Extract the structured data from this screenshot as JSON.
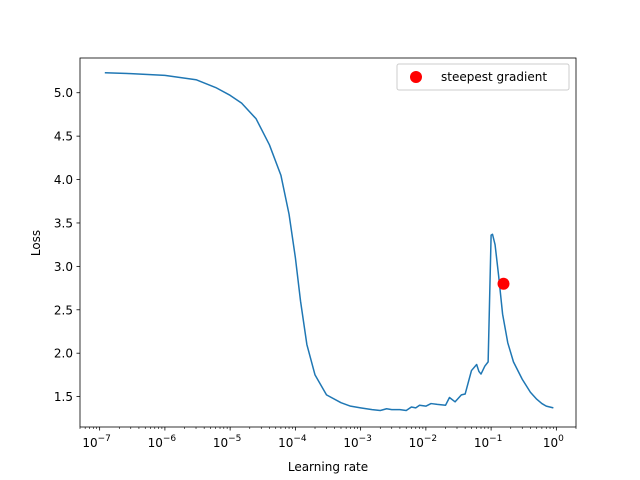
{
  "chart_data": {
    "type": "line",
    "xlabel": "Learning rate",
    "ylabel": "Loss",
    "xscale": "log",
    "xlim": [
      5e-08,
      2
    ],
    "ylim": [
      1.15,
      5.4
    ],
    "grid": false,
    "legend_placement": "top-right",
    "colors": {
      "line": "#1f77b4",
      "marker": "#ff0000"
    },
    "x_ticks": [
      {
        "value": 1e-07,
        "label": "10",
        "exp": "−7"
      },
      {
        "value": 1e-06,
        "label": "10",
        "exp": "−6"
      },
      {
        "value": 1e-05,
        "label": "10",
        "exp": "−5"
      },
      {
        "value": 0.0001,
        "label": "10",
        "exp": "−4"
      },
      {
        "value": 0.001,
        "label": "10",
        "exp": "−3"
      },
      {
        "value": 0.01,
        "label": "10",
        "exp": "−2"
      },
      {
        "value": 0.1,
        "label": "10",
        "exp": "−1"
      },
      {
        "value": 1,
        "label": "10",
        "exp": "0"
      }
    ],
    "y_ticks": [
      {
        "value": 1.5,
        "label": "1.5"
      },
      {
        "value": 2.0,
        "label": "2.0"
      },
      {
        "value": 2.5,
        "label": "2.5"
      },
      {
        "value": 3.0,
        "label": "3.0"
      },
      {
        "value": 3.5,
        "label": "3.5"
      },
      {
        "value": 4.0,
        "label": "4.0"
      },
      {
        "value": 4.5,
        "label": "4.5"
      },
      {
        "value": 5.0,
        "label": "5.0"
      }
    ],
    "series": [
      {
        "x": [
          1.2e-07,
          3e-07,
          1e-06,
          3e-06,
          6e-06,
          1e-05,
          1.5e-05,
          2.5e-05,
          4e-05,
          6e-05,
          8e-05,
          0.0001,
          0.00012,
          0.00015,
          0.0002,
          0.0003,
          0.0005,
          0.0007,
          0.001,
          0.0015,
          0.002,
          0.0025,
          0.003,
          0.004,
          0.005,
          0.006,
          0.007,
          0.008,
          0.01,
          0.012,
          0.015,
          0.02,
          0.023,
          0.028,
          0.035,
          0.04,
          0.05,
          0.06,
          0.065,
          0.07,
          0.08,
          0.09,
          0.1,
          0.105,
          0.115,
          0.13,
          0.15,
          0.18,
          0.22,
          0.3,
          0.4,
          0.5,
          0.6,
          0.7,
          0.9
        ],
        "y": [
          5.23,
          5.22,
          5.2,
          5.15,
          5.06,
          4.97,
          4.88,
          4.7,
          4.4,
          4.05,
          3.6,
          3.1,
          2.6,
          2.1,
          1.75,
          1.52,
          1.43,
          1.39,
          1.37,
          1.35,
          1.34,
          1.36,
          1.35,
          1.35,
          1.34,
          1.38,
          1.37,
          1.4,
          1.39,
          1.42,
          1.41,
          1.4,
          1.49,
          1.44,
          1.52,
          1.53,
          1.8,
          1.87,
          1.79,
          1.76,
          1.85,
          1.9,
          3.36,
          3.37,
          3.25,
          2.9,
          2.45,
          2.12,
          1.9,
          1.7,
          1.55,
          1.47,
          1.42,
          1.39,
          1.37
        ]
      },
      {
        "name": "steepest gradient",
        "marker": true,
        "x": [
          0.155
        ],
        "y": [
          2.8
        ]
      }
    ]
  }
}
